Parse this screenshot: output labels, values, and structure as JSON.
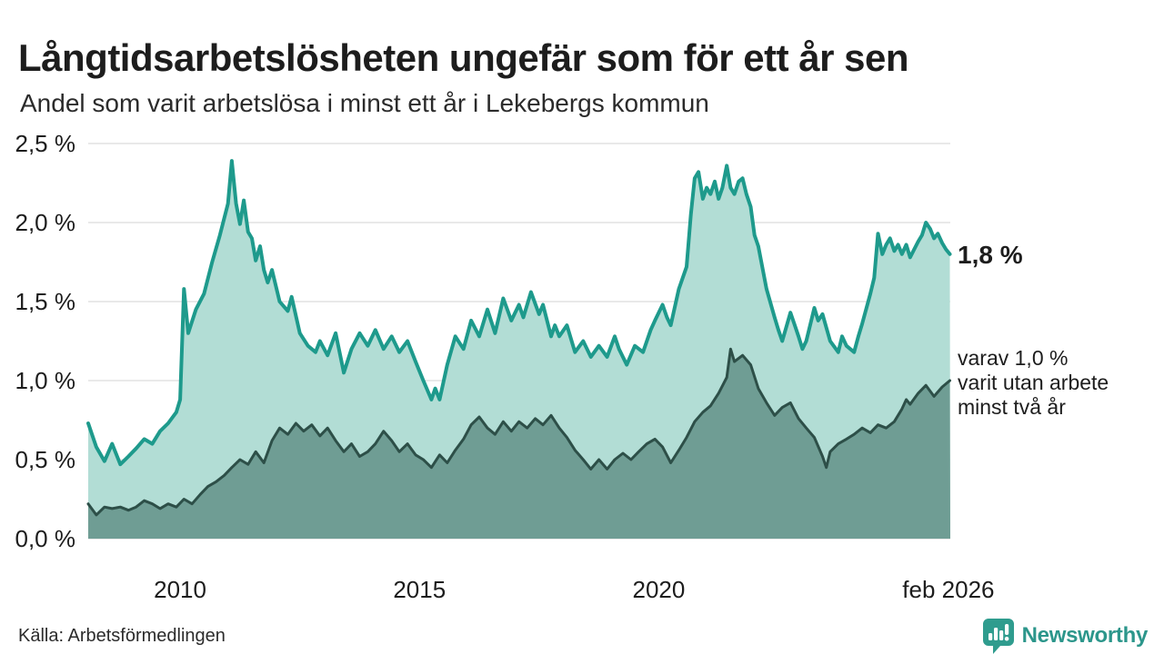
{
  "header": {
    "title": "Långtidsarbetslösheten ungefär som för ett år sen",
    "subtitle": "Andel som varit arbetslösa i minst ett år i Lekebergs kommun"
  },
  "annotations": {
    "latest_value": "1,8 %",
    "varav_line1": "varav 1,0 %",
    "varav_line2": "varit utan arbete",
    "varav_line3": "minst två år"
  },
  "footer": {
    "source": "Källa: Arbetsförmedlingen",
    "brand": "Newsworthy",
    "brand_color": "#2f9c8e"
  },
  "chart_data": {
    "type": "area",
    "title": "Långtidsarbetslösheten ungefär som för ett år sen",
    "subtitle": "Andel som varit arbetslösa i minst ett år i Lekebergs kommun",
    "xlim": [
      2008.08,
      2026.09
    ],
    "ylim": [
      0,
      2.5
    ],
    "grid": true,
    "grid_color": "#e2e2e2",
    "label_color": "#1d1d1d",
    "yticks": [
      {
        "v": 0.0,
        "label": "0,0 %"
      },
      {
        "v": 0.5,
        "label": "0,5 %"
      },
      {
        "v": 1.0,
        "label": "1,0 %"
      },
      {
        "v": 1.5,
        "label": "1,5 %"
      },
      {
        "v": 2.0,
        "label": "2,0 %"
      },
      {
        "v": 2.5,
        "label": "2,5 %"
      }
    ],
    "xticks": [
      {
        "v": 2010,
        "label": "2010"
      },
      {
        "v": 2015,
        "label": "2015"
      },
      {
        "v": 2020,
        "label": "2020"
      },
      {
        "v": 2026.05,
        "label": "feb 2026"
      }
    ],
    "series": [
      {
        "name": "Andel arbetslösa minst ett år",
        "line_color": "#1e9a8c",
        "fill_color": "#b2ddd5",
        "line_width": 4,
        "points": [
          [
            2008.08,
            0.73
          ],
          [
            2008.25,
            0.58
          ],
          [
            2008.42,
            0.49
          ],
          [
            2008.58,
            0.6
          ],
          [
            2008.75,
            0.47
          ],
          [
            2008.92,
            0.52
          ],
          [
            2009.08,
            0.57
          ],
          [
            2009.25,
            0.63
          ],
          [
            2009.42,
            0.6
          ],
          [
            2009.58,
            0.68
          ],
          [
            2009.75,
            0.73
          ],
          [
            2009.92,
            0.8
          ],
          [
            2010.0,
            0.88
          ],
          [
            2010.08,
            1.58
          ],
          [
            2010.17,
            1.3
          ],
          [
            2010.33,
            1.45
          ],
          [
            2010.5,
            1.55
          ],
          [
            2010.67,
            1.75
          ],
          [
            2010.83,
            1.92
          ],
          [
            2011.0,
            2.12
          ],
          [
            2011.08,
            2.39
          ],
          [
            2011.17,
            2.12
          ],
          [
            2011.25,
            1.99
          ],
          [
            2011.33,
            2.14
          ],
          [
            2011.42,
            1.94
          ],
          [
            2011.5,
            1.9
          ],
          [
            2011.58,
            1.76
          ],
          [
            2011.67,
            1.85
          ],
          [
            2011.75,
            1.7
          ],
          [
            2011.83,
            1.62
          ],
          [
            2011.92,
            1.7
          ],
          [
            2012.08,
            1.5
          ],
          [
            2012.25,
            1.44
          ],
          [
            2012.33,
            1.53
          ],
          [
            2012.5,
            1.3
          ],
          [
            2012.67,
            1.22
          ],
          [
            2012.83,
            1.18
          ],
          [
            2012.92,
            1.25
          ],
          [
            2013.08,
            1.16
          ],
          [
            2013.25,
            1.3
          ],
          [
            2013.42,
            1.05
          ],
          [
            2013.58,
            1.2
          ],
          [
            2013.75,
            1.3
          ],
          [
            2013.92,
            1.22
          ],
          [
            2014.08,
            1.32
          ],
          [
            2014.25,
            1.2
          ],
          [
            2014.42,
            1.28
          ],
          [
            2014.58,
            1.18
          ],
          [
            2014.75,
            1.25
          ],
          [
            2014.92,
            1.12
          ],
          [
            2015.08,
            1.0
          ],
          [
            2015.25,
            0.88
          ],
          [
            2015.33,
            0.95
          ],
          [
            2015.42,
            0.88
          ],
          [
            2015.58,
            1.1
          ],
          [
            2015.75,
            1.28
          ],
          [
            2015.92,
            1.2
          ],
          [
            2016.08,
            1.38
          ],
          [
            2016.25,
            1.28
          ],
          [
            2016.42,
            1.45
          ],
          [
            2016.58,
            1.3
          ],
          [
            2016.75,
            1.52
          ],
          [
            2016.92,
            1.38
          ],
          [
            2017.08,
            1.48
          ],
          [
            2017.17,
            1.4
          ],
          [
            2017.33,
            1.56
          ],
          [
            2017.5,
            1.42
          ],
          [
            2017.58,
            1.48
          ],
          [
            2017.75,
            1.28
          ],
          [
            2017.83,
            1.35
          ],
          [
            2017.92,
            1.28
          ],
          [
            2018.08,
            1.35
          ],
          [
            2018.25,
            1.18
          ],
          [
            2018.42,
            1.25
          ],
          [
            2018.58,
            1.15
          ],
          [
            2018.75,
            1.22
          ],
          [
            2018.92,
            1.15
          ],
          [
            2019.08,
            1.28
          ],
          [
            2019.17,
            1.2
          ],
          [
            2019.33,
            1.1
          ],
          [
            2019.5,
            1.22
          ],
          [
            2019.67,
            1.18
          ],
          [
            2019.83,
            1.32
          ],
          [
            2019.92,
            1.38
          ],
          [
            2020.08,
            1.48
          ],
          [
            2020.17,
            1.4
          ],
          [
            2020.25,
            1.35
          ],
          [
            2020.42,
            1.58
          ],
          [
            2020.58,
            1.72
          ],
          [
            2020.67,
            2.05
          ],
          [
            2020.75,
            2.28
          ],
          [
            2020.83,
            2.32
          ],
          [
            2020.92,
            2.15
          ],
          [
            2021.0,
            2.22
          ],
          [
            2021.08,
            2.18
          ],
          [
            2021.17,
            2.26
          ],
          [
            2021.25,
            2.15
          ],
          [
            2021.33,
            2.22
          ],
          [
            2021.42,
            2.36
          ],
          [
            2021.5,
            2.22
          ],
          [
            2021.58,
            2.18
          ],
          [
            2021.67,
            2.26
          ],
          [
            2021.75,
            2.28
          ],
          [
            2021.83,
            2.18
          ],
          [
            2021.92,
            2.1
          ],
          [
            2022.0,
            1.92
          ],
          [
            2022.08,
            1.85
          ],
          [
            2022.25,
            1.58
          ],
          [
            2022.42,
            1.4
          ],
          [
            2022.5,
            1.32
          ],
          [
            2022.58,
            1.25
          ],
          [
            2022.75,
            1.43
          ],
          [
            2022.83,
            1.36
          ],
          [
            2022.92,
            1.28
          ],
          [
            2023.0,
            1.2
          ],
          [
            2023.08,
            1.25
          ],
          [
            2023.25,
            1.46
          ],
          [
            2023.33,
            1.38
          ],
          [
            2023.42,
            1.42
          ],
          [
            2023.58,
            1.25
          ],
          [
            2023.75,
            1.18
          ],
          [
            2023.83,
            1.28
          ],
          [
            2023.92,
            1.22
          ],
          [
            2024.08,
            1.18
          ],
          [
            2024.17,
            1.28
          ],
          [
            2024.25,
            1.36
          ],
          [
            2024.42,
            1.55
          ],
          [
            2024.5,
            1.65
          ],
          [
            2024.58,
            1.93
          ],
          [
            2024.67,
            1.8
          ],
          [
            2024.75,
            1.86
          ],
          [
            2024.83,
            1.9
          ],
          [
            2024.92,
            1.82
          ],
          [
            2025.0,
            1.86
          ],
          [
            2025.08,
            1.8
          ],
          [
            2025.17,
            1.86
          ],
          [
            2025.25,
            1.78
          ],
          [
            2025.42,
            1.88
          ],
          [
            2025.5,
            1.92
          ],
          [
            2025.58,
            2.0
          ],
          [
            2025.67,
            1.96
          ],
          [
            2025.75,
            1.9
          ],
          [
            2025.83,
            1.93
          ],
          [
            2025.92,
            1.87
          ],
          [
            2026.0,
            1.83
          ],
          [
            2026.08,
            1.8
          ]
        ]
      },
      {
        "name": "varav utan arbete minst två år",
        "line_color": "#2d4f48",
        "fill_color": "#6f9d94",
        "line_width": 3,
        "points": [
          [
            2008.08,
            0.22
          ],
          [
            2008.25,
            0.15
          ],
          [
            2008.42,
            0.2
          ],
          [
            2008.58,
            0.19
          ],
          [
            2008.75,
            0.2
          ],
          [
            2008.92,
            0.18
          ],
          [
            2009.08,
            0.2
          ],
          [
            2009.25,
            0.24
          ],
          [
            2009.42,
            0.22
          ],
          [
            2009.58,
            0.19
          ],
          [
            2009.75,
            0.22
          ],
          [
            2009.92,
            0.2
          ],
          [
            2010.08,
            0.25
          ],
          [
            2010.25,
            0.22
          ],
          [
            2010.42,
            0.28
          ],
          [
            2010.58,
            0.33
          ],
          [
            2010.75,
            0.36
          ],
          [
            2010.92,
            0.4
          ],
          [
            2011.08,
            0.45
          ],
          [
            2011.25,
            0.5
          ],
          [
            2011.42,
            0.47
          ],
          [
            2011.58,
            0.55
          ],
          [
            2011.75,
            0.48
          ],
          [
            2011.92,
            0.62
          ],
          [
            2012.08,
            0.7
          ],
          [
            2012.25,
            0.66
          ],
          [
            2012.42,
            0.73
          ],
          [
            2012.58,
            0.68
          ],
          [
            2012.75,
            0.72
          ],
          [
            2012.92,
            0.65
          ],
          [
            2013.08,
            0.7
          ],
          [
            2013.25,
            0.62
          ],
          [
            2013.42,
            0.55
          ],
          [
            2013.58,
            0.6
          ],
          [
            2013.75,
            0.52
          ],
          [
            2013.92,
            0.55
          ],
          [
            2014.08,
            0.6
          ],
          [
            2014.25,
            0.68
          ],
          [
            2014.42,
            0.62
          ],
          [
            2014.58,
            0.55
          ],
          [
            2014.75,
            0.6
          ],
          [
            2014.92,
            0.53
          ],
          [
            2015.08,
            0.5
          ],
          [
            2015.25,
            0.45
          ],
          [
            2015.42,
            0.53
          ],
          [
            2015.58,
            0.48
          ],
          [
            2015.75,
            0.56
          ],
          [
            2015.92,
            0.63
          ],
          [
            2016.08,
            0.72
          ],
          [
            2016.25,
            0.77
          ],
          [
            2016.42,
            0.7
          ],
          [
            2016.58,
            0.66
          ],
          [
            2016.75,
            0.74
          ],
          [
            2016.92,
            0.68
          ],
          [
            2017.08,
            0.74
          ],
          [
            2017.25,
            0.7
          ],
          [
            2017.42,
            0.76
          ],
          [
            2017.58,
            0.72
          ],
          [
            2017.75,
            0.78
          ],
          [
            2017.92,
            0.7
          ],
          [
            2018.08,
            0.64
          ],
          [
            2018.25,
            0.56
          ],
          [
            2018.42,
            0.5
          ],
          [
            2018.58,
            0.44
          ],
          [
            2018.75,
            0.5
          ],
          [
            2018.92,
            0.44
          ],
          [
            2019.08,
            0.5
          ],
          [
            2019.25,
            0.54
          ],
          [
            2019.42,
            0.5
          ],
          [
            2019.58,
            0.55
          ],
          [
            2019.75,
            0.6
          ],
          [
            2019.92,
            0.63
          ],
          [
            2020.08,
            0.58
          ],
          [
            2020.25,
            0.48
          ],
          [
            2020.42,
            0.56
          ],
          [
            2020.58,
            0.64
          ],
          [
            2020.75,
            0.74
          ],
          [
            2020.92,
            0.8
          ],
          [
            2021.08,
            0.84
          ],
          [
            2021.25,
            0.92
          ],
          [
            2021.42,
            1.02
          ],
          [
            2021.5,
            1.2
          ],
          [
            2021.58,
            1.12
          ],
          [
            2021.75,
            1.16
          ],
          [
            2021.92,
            1.1
          ],
          [
            2022.08,
            0.95
          ],
          [
            2022.25,
            0.86
          ],
          [
            2022.42,
            0.78
          ],
          [
            2022.58,
            0.83
          ],
          [
            2022.75,
            0.86
          ],
          [
            2022.92,
            0.76
          ],
          [
            2023.08,
            0.7
          ],
          [
            2023.25,
            0.64
          ],
          [
            2023.42,
            0.52
          ],
          [
            2023.5,
            0.45
          ],
          [
            2023.58,
            0.55
          ],
          [
            2023.75,
            0.6
          ],
          [
            2023.92,
            0.63
          ],
          [
            2024.08,
            0.66
          ],
          [
            2024.25,
            0.7
          ],
          [
            2024.42,
            0.67
          ],
          [
            2024.58,
            0.72
          ],
          [
            2024.75,
            0.7
          ],
          [
            2024.92,
            0.74
          ],
          [
            2025.08,
            0.82
          ],
          [
            2025.17,
            0.88
          ],
          [
            2025.25,
            0.85
          ],
          [
            2025.42,
            0.92
          ],
          [
            2025.58,
            0.97
          ],
          [
            2025.75,
            0.9
          ],
          [
            2025.92,
            0.96
          ],
          [
            2026.0,
            0.98
          ],
          [
            2026.08,
            1.0
          ]
        ]
      }
    ],
    "annotations": [
      {
        "text": "1,8 %",
        "series": "Andel arbetslösa minst ett år",
        "position": "end"
      },
      {
        "text": "varav 1,0 % varit utan arbete minst två år",
        "series": "varav utan arbete minst två år",
        "position": "end"
      }
    ]
  }
}
